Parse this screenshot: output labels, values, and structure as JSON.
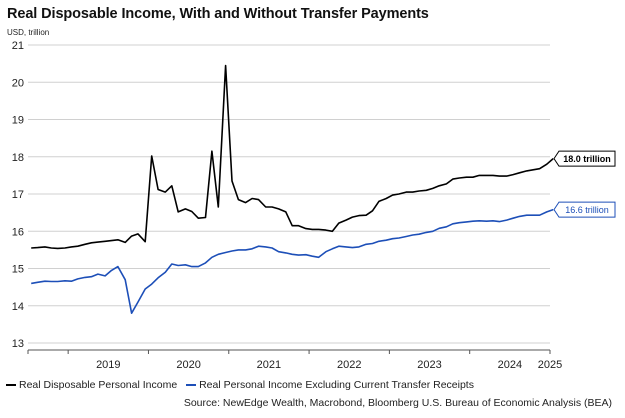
{
  "chart_data": {
    "type": "line",
    "title": "Real Disposable Income, With and Without Transfer Payments",
    "unit_label": "USD, trillion",
    "ylim": [
      13,
      21
    ],
    "y_ticks": [
      "13",
      "14",
      "15",
      "16",
      "17",
      "18",
      "19",
      "20",
      "21"
    ],
    "x_range": [
      2018.5,
      2025
    ],
    "x_tick_labels": [
      "2019",
      "2020",
      "2021",
      "2022",
      "2023",
      "2024",
      "2025"
    ],
    "grid": "horizontal",
    "legend_position": "bottom",
    "series": [
      {
        "name": "Real Disposable Personal Income",
        "color": "#000000",
        "end_label": "18.0 trillion",
        "points": [
          [
            2018.54,
            15.55
          ],
          [
            2018.62,
            15.56
          ],
          [
            2018.71,
            15.58
          ],
          [
            2018.79,
            15.55
          ],
          [
            2018.87,
            15.54
          ],
          [
            2018.96,
            15.55
          ],
          [
            2019.04,
            15.58
          ],
          [
            2019.12,
            15.6
          ],
          [
            2019.21,
            15.65
          ],
          [
            2019.29,
            15.69
          ],
          [
            2019.37,
            15.71
          ],
          [
            2019.46,
            15.73
          ],
          [
            2019.54,
            15.75
          ],
          [
            2019.62,
            15.77
          ],
          [
            2019.71,
            15.7
          ],
          [
            2019.79,
            15.87
          ],
          [
            2019.87,
            15.93
          ],
          [
            2019.96,
            15.72
          ],
          [
            2020.04,
            18.02
          ],
          [
            2020.12,
            17.12
          ],
          [
            2020.21,
            17.05
          ],
          [
            2020.29,
            17.22
          ],
          [
            2020.37,
            16.52
          ],
          [
            2020.46,
            16.6
          ],
          [
            2020.54,
            16.53
          ],
          [
            2020.62,
            16.35
          ],
          [
            2020.71,
            16.37
          ],
          [
            2020.79,
            18.15
          ],
          [
            2020.87,
            16.65
          ],
          [
            2020.96,
            20.45
          ],
          [
            2021.04,
            17.35
          ],
          [
            2021.12,
            16.85
          ],
          [
            2021.21,
            16.77
          ],
          [
            2021.29,
            16.88
          ],
          [
            2021.37,
            16.85
          ],
          [
            2021.46,
            16.65
          ],
          [
            2021.54,
            16.65
          ],
          [
            2021.62,
            16.6
          ],
          [
            2021.71,
            16.52
          ],
          [
            2021.79,
            16.15
          ],
          [
            2021.87,
            16.15
          ],
          [
            2021.96,
            16.07
          ],
          [
            2022.04,
            16.05
          ],
          [
            2022.12,
            16.05
          ],
          [
            2022.21,
            16.03
          ],
          [
            2022.29,
            16.0
          ],
          [
            2022.37,
            16.22
          ],
          [
            2022.46,
            16.3
          ],
          [
            2022.54,
            16.38
          ],
          [
            2022.62,
            16.42
          ],
          [
            2022.71,
            16.43
          ],
          [
            2022.79,
            16.55
          ],
          [
            2022.87,
            16.8
          ],
          [
            2022.96,
            16.88
          ],
          [
            2023.04,
            16.97
          ],
          [
            2023.12,
            17.0
          ],
          [
            2023.21,
            17.05
          ],
          [
            2023.29,
            17.05
          ],
          [
            2023.37,
            17.08
          ],
          [
            2023.46,
            17.1
          ],
          [
            2023.54,
            17.15
          ],
          [
            2023.62,
            17.22
          ],
          [
            2023.71,
            17.27
          ],
          [
            2023.79,
            17.4
          ],
          [
            2023.87,
            17.43
          ],
          [
            2023.96,
            17.45
          ],
          [
            2024.04,
            17.45
          ],
          [
            2024.12,
            17.5
          ],
          [
            2024.21,
            17.5
          ],
          [
            2024.29,
            17.5
          ],
          [
            2024.37,
            17.48
          ],
          [
            2024.46,
            17.48
          ],
          [
            2024.54,
            17.52
          ],
          [
            2024.62,
            17.57
          ],
          [
            2024.71,
            17.62
          ],
          [
            2024.79,
            17.65
          ],
          [
            2024.87,
            17.68
          ],
          [
            2024.96,
            17.8
          ],
          [
            2025.04,
            17.95
          ]
        ]
      },
      {
        "name": "Real Personal Income Excluding Current Transfer Receipts",
        "color": "#1d4fb8",
        "end_label": "16.6 trillion",
        "points": [
          [
            2018.54,
            14.6
          ],
          [
            2018.62,
            14.63
          ],
          [
            2018.71,
            14.66
          ],
          [
            2018.79,
            14.65
          ],
          [
            2018.87,
            14.65
          ],
          [
            2018.96,
            14.67
          ],
          [
            2019.04,
            14.66
          ],
          [
            2019.12,
            14.72
          ],
          [
            2019.21,
            14.76
          ],
          [
            2019.29,
            14.78
          ],
          [
            2019.37,
            14.85
          ],
          [
            2019.46,
            14.8
          ],
          [
            2019.54,
            14.95
          ],
          [
            2019.62,
            15.05
          ],
          [
            2019.71,
            14.7
          ],
          [
            2019.79,
            13.8
          ],
          [
            2019.87,
            14.1
          ],
          [
            2019.96,
            14.45
          ],
          [
            2020.04,
            14.58
          ],
          [
            2020.12,
            14.75
          ],
          [
            2020.21,
            14.9
          ],
          [
            2020.29,
            15.12
          ],
          [
            2020.37,
            15.08
          ],
          [
            2020.46,
            15.1
          ],
          [
            2020.54,
            15.05
          ],
          [
            2020.62,
            15.05
          ],
          [
            2020.71,
            15.15
          ],
          [
            2020.79,
            15.3
          ],
          [
            2020.87,
            15.38
          ],
          [
            2020.96,
            15.43
          ],
          [
            2021.04,
            15.47
          ],
          [
            2021.12,
            15.5
          ],
          [
            2021.21,
            15.5
          ],
          [
            2021.29,
            15.53
          ],
          [
            2021.37,
            15.6
          ],
          [
            2021.46,
            15.58
          ],
          [
            2021.54,
            15.55
          ],
          [
            2021.62,
            15.45
          ],
          [
            2021.71,
            15.42
          ],
          [
            2021.79,
            15.38
          ],
          [
            2021.87,
            15.36
          ],
          [
            2021.96,
            15.37
          ],
          [
            2022.04,
            15.33
          ],
          [
            2022.12,
            15.3
          ],
          [
            2022.21,
            15.45
          ],
          [
            2022.29,
            15.53
          ],
          [
            2022.37,
            15.6
          ],
          [
            2022.46,
            15.58
          ],
          [
            2022.54,
            15.56
          ],
          [
            2022.62,
            15.58
          ],
          [
            2022.71,
            15.65
          ],
          [
            2022.79,
            15.67
          ],
          [
            2022.87,
            15.73
          ],
          [
            2022.96,
            15.76
          ],
          [
            2023.04,
            15.8
          ],
          [
            2023.12,
            15.82
          ],
          [
            2023.21,
            15.86
          ],
          [
            2023.29,
            15.9
          ],
          [
            2023.37,
            15.92
          ],
          [
            2023.46,
            15.97
          ],
          [
            2023.54,
            16.0
          ],
          [
            2023.62,
            16.08
          ],
          [
            2023.71,
            16.12
          ],
          [
            2023.79,
            16.2
          ],
          [
            2023.87,
            16.23
          ],
          [
            2023.96,
            16.25
          ],
          [
            2024.04,
            16.27
          ],
          [
            2024.12,
            16.28
          ],
          [
            2024.21,
            16.27
          ],
          [
            2024.29,
            16.28
          ],
          [
            2024.37,
            16.26
          ],
          [
            2024.46,
            16.3
          ],
          [
            2024.54,
            16.35
          ],
          [
            2024.62,
            16.4
          ],
          [
            2024.71,
            16.43
          ],
          [
            2024.79,
            16.43
          ],
          [
            2024.87,
            16.43
          ],
          [
            2024.96,
            16.52
          ],
          [
            2025.04,
            16.58
          ]
        ]
      }
    ],
    "source": "Source: NewEdge Wealth, Macrobond, Bloomberg U.S. Bureau of Economic Analysis (BEA)"
  },
  "legend": [
    {
      "label": "Real Disposable Personal Income",
      "color": "#000000"
    },
    {
      "label": "Real Personal Income Excluding Current Transfer Receipts",
      "color": "#1d4fb8"
    }
  ]
}
